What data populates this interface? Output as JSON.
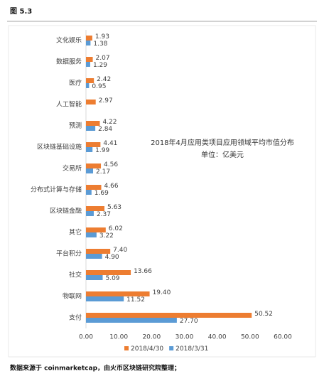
{
  "header": {
    "title": "图 5.3"
  },
  "chart_data": {
    "type": "hbar",
    "title": "2018年4月应用类项目应用领域平均市值分布",
    "subtitle": "单位：亿美元",
    "categories": [
      "文化娱乐",
      "数据服务",
      "医疗",
      "人工智能",
      "预测",
      "区块链基础设施",
      "交易所",
      "分布式计算与存储",
      "区块链金融",
      "其它",
      "平台积分",
      "社交",
      "物联网",
      "支付"
    ],
    "series": [
      {
        "name": "2018/4/30",
        "color": "#ED7D31",
        "values": [
          1.93,
          2.07,
          2.42,
          2.97,
          4.22,
          4.41,
          4.56,
          4.66,
          5.63,
          6.02,
          7.4,
          13.66,
          19.4,
          50.52
        ],
        "value_labels": [
          "1.93",
          "2.07",
          "2.42",
          "2.97",
          "4.22",
          "4.41",
          "4.56",
          "4.66",
          "5.63",
          "6.02",
          "7.40",
          "13.66",
          "19.40",
          "50.52"
        ]
      },
      {
        "name": "2018/3/31",
        "color": "#5B9BD5",
        "values": [
          1.38,
          1.29,
          0.95,
          null,
          2.84,
          1.99,
          2.17,
          1.69,
          2.37,
          3.22,
          4.9,
          5.09,
          11.52,
          27.7
        ],
        "value_labels": [
          "1.38",
          "1.29",
          "0.95",
          null,
          "2.84",
          "1.99",
          "2.17",
          "1.69",
          "2.37",
          "3.22",
          "4.90",
          "5.09",
          "11.52",
          "27.70"
        ]
      }
    ],
    "xlim": [
      0,
      60
    ],
    "xticks": [
      {
        "value": 0,
        "label": "0.00"
      },
      {
        "value": 10,
        "label": "10.00"
      },
      {
        "value": 20,
        "label": "20.00"
      },
      {
        "value": 30,
        "label": "30.00"
      },
      {
        "value": 40,
        "label": "40.00"
      },
      {
        "value": 50,
        "label": "50.00"
      },
      {
        "value": 60,
        "label": "60.00"
      }
    ],
    "grid": false,
    "legend": "bottom"
  },
  "footer": {
    "source": "数据来源于 coinmarketcap，由火币区块链研究院整理；"
  }
}
